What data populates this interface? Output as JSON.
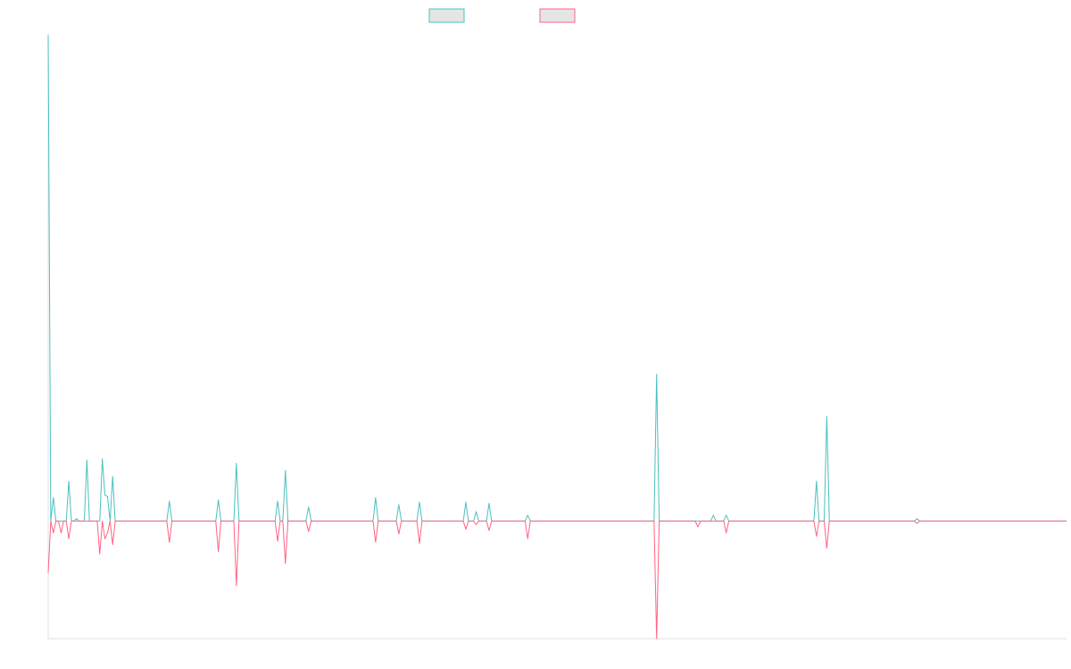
{
  "chart_data": {
    "type": "line",
    "title": "",
    "xlabel": "",
    "ylabel": "",
    "grid": false,
    "legend_position": "top-center",
    "n_points": 396,
    "ylim": [
      -100,
      415
    ],
    "series": [
      {
        "color": "#4bc0c0",
        "fill": "#e5e5e5",
        "sparse": [
          [
            0,
            413
          ],
          [
            2,
            20
          ],
          [
            5,
            0
          ],
          [
            8,
            34
          ],
          [
            10,
            0
          ],
          [
            11,
            2
          ],
          [
            13,
            0
          ],
          [
            15,
            52
          ],
          [
            17,
            0
          ],
          [
            20,
            0
          ],
          [
            21,
            53
          ],
          [
            22,
            22
          ],
          [
            23,
            21
          ],
          [
            25,
            38
          ],
          [
            27,
            0
          ],
          [
            47,
            17
          ],
          [
            66,
            18
          ],
          [
            73,
            49
          ],
          [
            89,
            17
          ],
          [
            92,
            43
          ],
          [
            101,
            12
          ],
          [
            127,
            20
          ],
          [
            136,
            14
          ],
          [
            144,
            16
          ],
          [
            162,
            16
          ],
          [
            166,
            8
          ],
          [
            171,
            15
          ],
          [
            186,
            5
          ],
          [
            236,
            125
          ],
          [
            258,
            5
          ],
          [
            263,
            5
          ],
          [
            298,
            34
          ],
          [
            302,
            89
          ],
          [
            337,
            2
          ]
        ]
      },
      {
        "color": "#ff6384",
        "fill": "#e5e5e5",
        "sparse": [
          [
            0,
            -44
          ],
          [
            2,
            -10
          ],
          [
            5,
            -10
          ],
          [
            8,
            -15
          ],
          [
            10,
            0
          ],
          [
            20,
            -28
          ],
          [
            22,
            -15
          ],
          [
            23,
            -10
          ],
          [
            25,
            -20
          ],
          [
            27,
            0
          ],
          [
            47,
            -18
          ],
          [
            66,
            -26
          ],
          [
            73,
            -55
          ],
          [
            89,
            -17
          ],
          [
            92,
            -36
          ],
          [
            101,
            -9
          ],
          [
            127,
            -18
          ],
          [
            136,
            -11
          ],
          [
            144,
            -19
          ],
          [
            162,
            -7
          ],
          [
            166,
            -3
          ],
          [
            171,
            -8
          ],
          [
            186,
            -15
          ],
          [
            236,
            -100
          ],
          [
            252,
            -5
          ],
          [
            263,
            -10
          ],
          [
            298,
            -13
          ],
          [
            302,
            -23
          ],
          [
            337,
            -2
          ]
        ]
      }
    ]
  }
}
